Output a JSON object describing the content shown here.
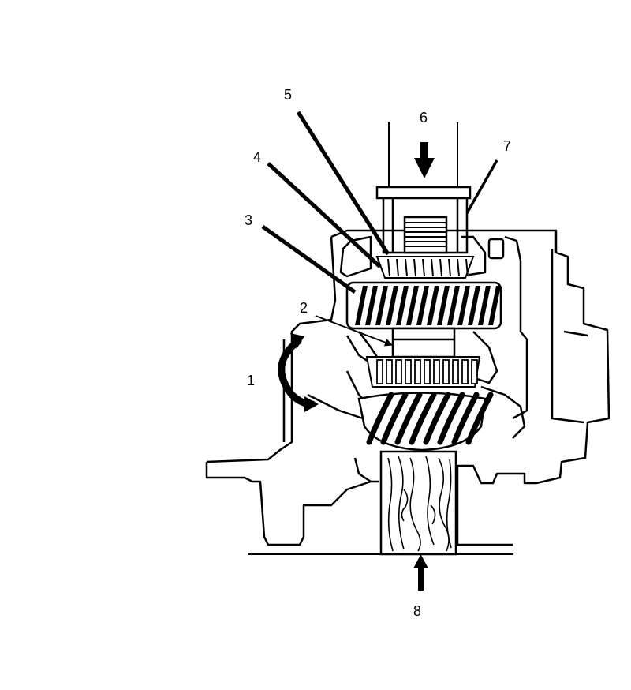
{
  "diagram": {
    "callouts": [
      {
        "id": "1",
        "label": "1"
      },
      {
        "id": "2",
        "label": "2"
      },
      {
        "id": "3",
        "label": "3"
      },
      {
        "id": "4",
        "label": "4"
      },
      {
        "id": "5",
        "label": "5"
      },
      {
        "id": "6",
        "label": "6"
      },
      {
        "id": "7",
        "label": "7"
      },
      {
        "id": "8",
        "label": "8"
      }
    ],
    "colors": {
      "ink": "#000000",
      "paper": "#ffffff"
    }
  }
}
